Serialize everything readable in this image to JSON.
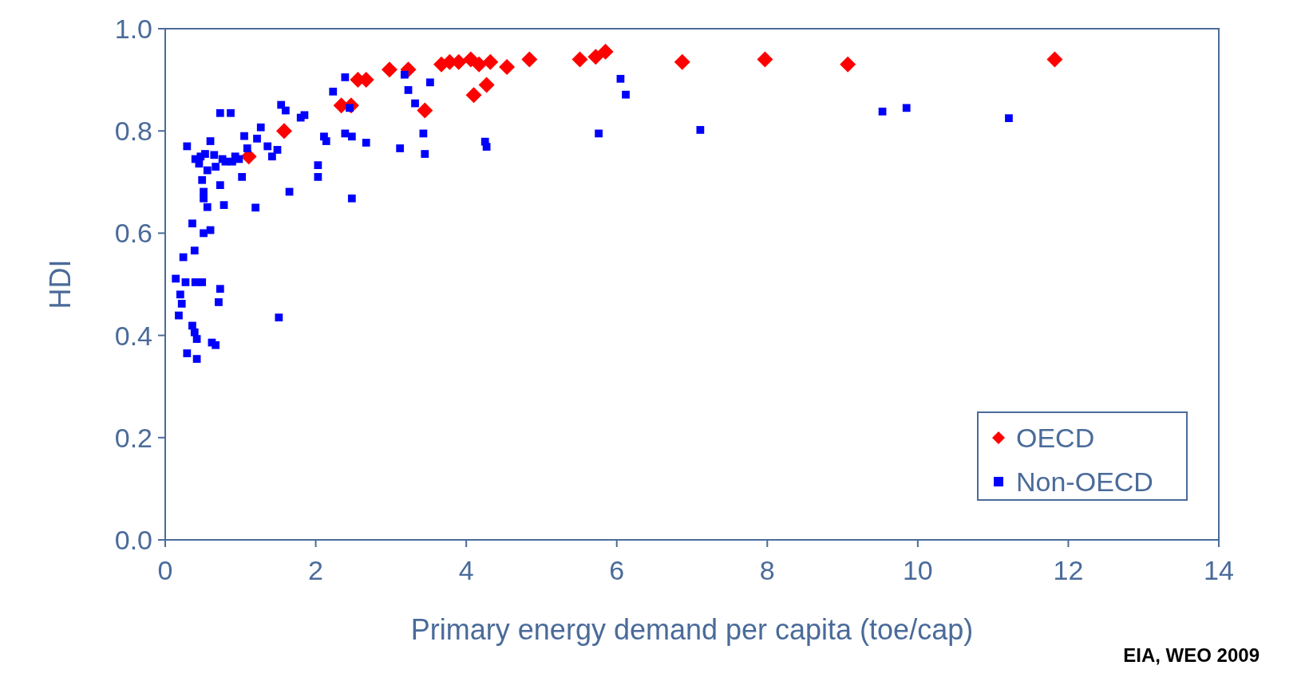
{
  "chart_data": {
    "type": "scatter",
    "xlabel": "Primary energy demand per capita (toe/cap)",
    "ylabel": "HDI",
    "xlim": [
      0,
      14
    ],
    "xticks": [
      0,
      2,
      4,
      6,
      8,
      10,
      12,
      14
    ],
    "ylim": [
      0,
      1
    ],
    "yticks": [
      {
        "value": 0,
        "label": "0.0"
      },
      {
        "value": 0.2,
        "label": "0.2"
      },
      {
        "value": 0.4,
        "label": "0.4"
      },
      {
        "value": 0.6,
        "label": "0.6"
      },
      {
        "value": 0.8,
        "label": "0.8"
      },
      {
        "value": 1,
        "label": "1.0"
      }
    ],
    "grid": false,
    "legend": "bottom right",
    "annotations": [
      "EIA, WEO 2009"
    ],
    "series": [
      {
        "name": "OECD",
        "color": "#ff0000",
        "marker": "diamond",
        "x": [
          1.11,
          1.58,
          2.34,
          2.47,
          2.56,
          2.67,
          2.98,
          3.23,
          3.45,
          3.67,
          3.78,
          3.9,
          4.06,
          4.17,
          4.32,
          4.54,
          4.1,
          4.27,
          4.84,
          5.51,
          5.72,
          5.85,
          6.87,
          7.97,
          9.07,
          11.82
        ],
        "values": [
          0.75,
          0.8,
          0.85,
          0.85,
          0.9,
          0.9,
          0.92,
          0.92,
          0.84,
          0.93,
          0.935,
          0.935,
          0.94,
          0.93,
          0.935,
          0.925,
          0.87,
          0.89,
          0.94,
          0.94,
          0.945,
          0.955,
          0.935,
          0.94,
          0.93,
          0.94
        ]
      },
      {
        "name": "Non-OECD",
        "color": "#0000ff",
        "marker": "square",
        "x": [
          0.29,
          0.6,
          0.73,
          0.87,
          0.4,
          0.47,
          0.53,
          0.65,
          0.76,
          0.89,
          0.98,
          1.05,
          1.09,
          1.22,
          1.27,
          1.36,
          1.42,
          1.49,
          1.54,
          1.6,
          1.8,
          1.85,
          2.11,
          2.14,
          2.23,
          2.39,
          2.45,
          2.39,
          2.48,
          2.67,
          2.03,
          2.03,
          2.48,
          1.65,
          1.2,
          1.02,
          0.73,
          0.78,
          0.56,
          0.51,
          0.49,
          0.51,
          0.67,
          0.6,
          0.51,
          0.36,
          0.39,
          0.24,
          0.14,
          0.27,
          0.4,
          0.49,
          0.2,
          0.22,
          0.18,
          0.39,
          0.36,
          0.42,
          0.62,
          0.67,
          0.29,
          0.42,
          0.73,
          0.71,
          1.51,
          3.18,
          3.23,
          3.32,
          3.52,
          3.12,
          3.43,
          3.45,
          4.25,
          4.27,
          5.76,
          6.05,
          6.12,
          7.11,
          9.53,
          9.85,
          11.21,
          0.45,
          0.56,
          0.8,
          0.93
        ],
        "values": [
          0.77,
          0.78,
          0.835,
          0.835,
          0.745,
          0.75,
          0.755,
          0.753,
          0.745,
          0.74,
          0.745,
          0.79,
          0.766,
          0.785,
          0.807,
          0.77,
          0.75,
          0.763,
          0.851,
          0.84,
          0.826,
          0.831,
          0.789,
          0.78,
          0.877,
          0.905,
          0.845,
          0.795,
          0.789,
          0.777,
          0.733,
          0.71,
          0.668,
          0.681,
          0.65,
          0.71,
          0.694,
          0.655,
          0.651,
          0.681,
          0.704,
          0.668,
          0.73,
          0.606,
          0.6,
          0.619,
          0.566,
          0.553,
          0.511,
          0.504,
          0.504,
          0.504,
          0.48,
          0.462,
          0.439,
          0.406,
          0.419,
          0.393,
          0.386,
          0.381,
          0.365,
          0.354,
          0.491,
          0.465,
          0.435,
          0.91,
          0.88,
          0.854,
          0.895,
          0.766,
          0.795,
          0.755,
          0.779,
          0.769,
          0.795,
          0.902,
          0.871,
          0.802,
          0.838,
          0.845,
          0.825,
          0.736,
          0.723,
          0.74,
          0.75
        ]
      }
    ]
  }
}
